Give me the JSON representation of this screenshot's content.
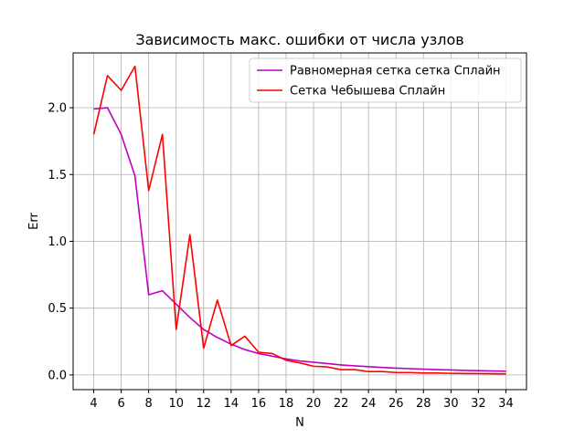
{
  "chart_data": {
    "type": "line",
    "title": "Зависимость макс. ошибки от числа узлов",
    "xlabel": "N",
    "ylabel": "Err",
    "xlim": [
      2.5,
      35.5
    ],
    "ylim": [
      -0.11,
      2.41
    ],
    "xticks": [
      4,
      6,
      8,
      10,
      12,
      14,
      16,
      18,
      20,
      22,
      24,
      26,
      28,
      30,
      32,
      34
    ],
    "yticks": [
      0.0,
      0.5,
      1.0,
      1.5,
      2.0
    ],
    "ytick_labels": [
      "0.0",
      "0.5",
      "1.0",
      "1.5",
      "2.0"
    ],
    "grid": true,
    "legend_position": "top-right",
    "x": [
      4,
      5,
      6,
      7,
      8,
      9,
      10,
      11,
      12,
      13,
      14,
      15,
      16,
      17,
      18,
      19,
      20,
      21,
      22,
      23,
      24,
      25,
      26,
      27,
      28,
      29,
      30,
      31,
      32,
      33,
      34
    ],
    "series": [
      {
        "name": "Равномерная сетка сетка Сплайн",
        "color": "#bf00bf",
        "values": [
          1.99,
          2.0,
          1.8,
          1.49,
          0.6,
          0.63,
          0.53,
          0.43,
          0.34,
          0.28,
          0.23,
          0.19,
          0.16,
          0.14,
          0.12,
          0.105,
          0.095,
          0.085,
          0.075,
          0.068,
          0.062,
          0.056,
          0.051,
          0.047,
          0.043,
          0.04,
          0.037,
          0.034,
          0.032,
          0.03,
          0.028
        ]
      },
      {
        "name": "Сетка Чебышева Сплайн",
        "color": "#ff0000",
        "values": [
          1.8,
          2.24,
          2.13,
          2.31,
          1.38,
          1.8,
          0.34,
          1.05,
          0.2,
          0.56,
          0.22,
          0.29,
          0.17,
          0.16,
          0.11,
          0.09,
          0.065,
          0.06,
          0.04,
          0.04,
          0.025,
          0.025,
          0.018,
          0.018,
          0.014,
          0.014,
          0.012,
          0.011,
          0.01,
          0.009,
          0.008
        ]
      }
    ]
  }
}
